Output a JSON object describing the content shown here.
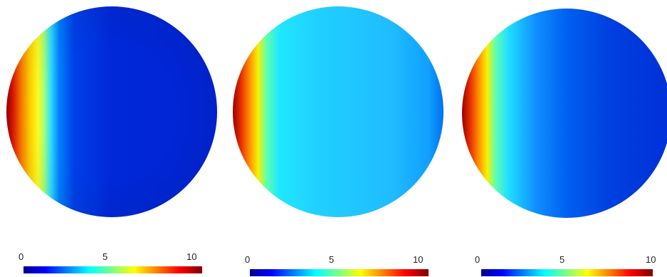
{
  "panels": [
    {
      "colorbar": {
        "min_label": "0",
        "mid_label": "5",
        "max_label": "10"
      }
    },
    {
      "colorbar": {
        "min_label": "0",
        "mid_label": "5",
        "max_label": "10"
      }
    },
    {
      "colorbar": {
        "min_label": "0",
        "mid_label": "5",
        "max_label": "10"
      }
    }
  ],
  "colormap": "jet",
  "colormap_stops": [
    "#00008f",
    "#0000ff",
    "#0080ff",
    "#00ffff",
    "#80ff80",
    "#ffff00",
    "#ff8000",
    "#ff0000",
    "#800000"
  ]
}
